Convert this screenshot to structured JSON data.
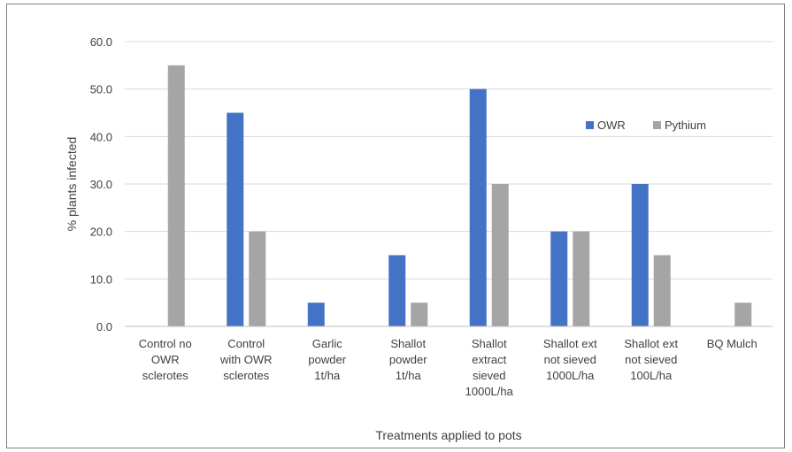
{
  "chart_data": {
    "type": "bar",
    "title": "",
    "xlabel": "Treatments applied to pots",
    "ylabel": "% plants infected",
    "ylim": [
      0,
      60
    ],
    "yticks": [
      "0.0",
      "10.0",
      "20.0",
      "30.0",
      "40.0",
      "50.0",
      "60.0"
    ],
    "grid": true,
    "legend_position": "top-right",
    "categories": [
      [
        "Control no",
        "OWR",
        "sclerotes"
      ],
      [
        "Control",
        "with OWR",
        "sclerotes"
      ],
      [
        "Garlic",
        "powder",
        "1t/ha"
      ],
      [
        "Shallot",
        "powder",
        "1t/ha"
      ],
      [
        "Shallot",
        "extract",
        "sieved",
        "1000L/ha"
      ],
      [
        "Shallot ext",
        "not sieved",
        "1000L/ha"
      ],
      [
        "Shallot ext",
        "not sieved",
        "100L/ha"
      ],
      [
        "BQ Mulch"
      ]
    ],
    "series": [
      {
        "name": "OWR",
        "color": "#4472c4",
        "values": [
          0,
          45,
          5,
          15,
          50,
          20,
          30,
          0
        ]
      },
      {
        "name": "Pythium",
        "color": "#a5a5a5",
        "values": [
          55,
          20,
          0,
          5,
          30,
          20,
          15,
          5
        ]
      }
    ]
  }
}
